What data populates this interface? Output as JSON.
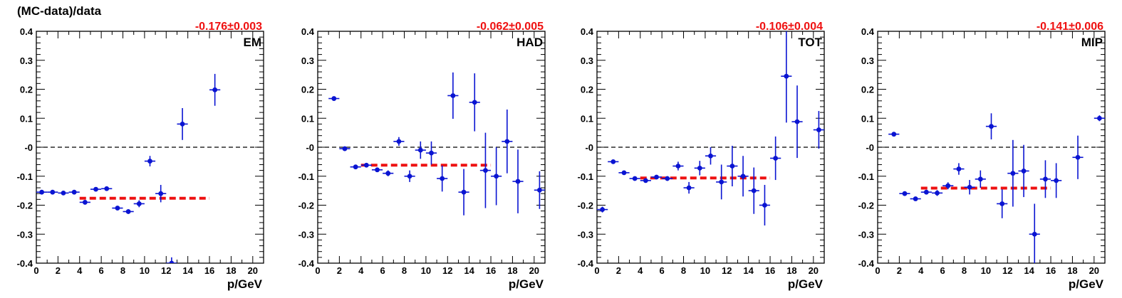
{
  "figure": {
    "ylabel": "(MC-data)/data"
  },
  "chart_data": [
    {
      "type": "scatter",
      "label": "EM",
      "fit_text": "-0.176±0.003",
      "fit_value": -0.176,
      "fit_range": [
        4,
        16
      ],
      "xlabel": "p/GeV",
      "xlim": [
        0,
        21
      ],
      "ylim": [
        -0.4,
        0.4
      ],
      "xticks": [
        "0",
        "2",
        "4",
        "6",
        "8",
        "10",
        "12",
        "14",
        "16",
        "18",
        "20"
      ],
      "yticks": [
        "-0.4",
        "-0.3",
        "-0.2",
        "-0.1",
        "-0",
        "0.1",
        "0.2",
        "0.3",
        "0.4"
      ],
      "points": [
        {
          "x": 0.5,
          "y": -0.155,
          "err": 0.004
        },
        {
          "x": 1.5,
          "y": -0.155,
          "err": 0.004
        },
        {
          "x": 2.5,
          "y": -0.158,
          "err": 0.004
        },
        {
          "x": 3.5,
          "y": -0.155,
          "err": 0.004
        },
        {
          "x": 4.5,
          "y": -0.19,
          "err": 0.006
        },
        {
          "x": 5.5,
          "y": -0.145,
          "err": 0.005
        },
        {
          "x": 6.5,
          "y": -0.143,
          "err": 0.005
        },
        {
          "x": 7.5,
          "y": -0.21,
          "err": 0.007
        },
        {
          "x": 8.5,
          "y": -0.222,
          "err": 0.008
        },
        {
          "x": 9.5,
          "y": -0.195,
          "err": 0.012
        },
        {
          "x": 10.5,
          "y": -0.048,
          "err": 0.018
        },
        {
          "x": 11.5,
          "y": -0.16,
          "err": 0.03
        },
        {
          "x": 12.5,
          "y": -0.4,
          "err": 0.02
        },
        {
          "x": 13.5,
          "y": 0.08,
          "err": 0.055
        },
        {
          "x": 16.5,
          "y": 0.198,
          "err": 0.055
        }
      ]
    },
    {
      "type": "scatter",
      "label": "HAD",
      "fit_text": "-0.062±0.005",
      "fit_value": -0.062,
      "fit_range": [
        4,
        16
      ],
      "xlabel": "p/GeV",
      "xlim": [
        0,
        21
      ],
      "ylim": [
        -0.4,
        0.4
      ],
      "xticks": [
        "0",
        "2",
        "4",
        "6",
        "8",
        "10",
        "12",
        "14",
        "16",
        "18",
        "20"
      ],
      "yticks": [
        "-0.4",
        "-0.3",
        "-0.2",
        "-0.1",
        "-0",
        "0.1",
        "0.2",
        "0.3",
        "0.4"
      ],
      "points": [
        {
          "x": 1.5,
          "y": 0.168,
          "err": 0.004
        },
        {
          "x": 2.5,
          "y": -0.005,
          "err": 0.004
        },
        {
          "x": 3.5,
          "y": -0.068,
          "err": 0.004
        },
        {
          "x": 4.5,
          "y": -0.062,
          "err": 0.006
        },
        {
          "x": 5.5,
          "y": -0.078,
          "err": 0.008
        },
        {
          "x": 6.5,
          "y": -0.09,
          "err": 0.01
        },
        {
          "x": 7.5,
          "y": 0.02,
          "err": 0.015
        },
        {
          "x": 8.5,
          "y": -0.1,
          "err": 0.02
        },
        {
          "x": 9.5,
          "y": -0.01,
          "err": 0.03
        },
        {
          "x": 10.5,
          "y": -0.02,
          "err": 0.04
        },
        {
          "x": 11.5,
          "y": -0.108,
          "err": 0.045
        },
        {
          "x": 12.5,
          "y": 0.178,
          "err": 0.08
        },
        {
          "x": 13.5,
          "y": -0.155,
          "err": 0.08
        },
        {
          "x": 14.5,
          "y": 0.155,
          "err": 0.1
        },
        {
          "x": 15.5,
          "y": -0.08,
          "err": 0.13
        },
        {
          "x": 16.5,
          "y": -0.1,
          "err": 0.1
        },
        {
          "x": 17.5,
          "y": 0.02,
          "err": 0.11
        },
        {
          "x": 18.5,
          "y": -0.118,
          "err": 0.11
        },
        {
          "x": 20.5,
          "y": -0.148,
          "err": 0.065
        }
      ]
    },
    {
      "type": "scatter",
      "label": "TOT",
      "fit_text": "-0.106±0.004",
      "fit_value": -0.106,
      "fit_range": [
        4,
        16
      ],
      "xlabel": "p/GeV",
      "xlim": [
        0,
        21
      ],
      "ylim": [
        -0.4,
        0.4
      ],
      "xticks": [
        "0",
        "2",
        "4",
        "6",
        "8",
        "10",
        "12",
        "14",
        "16",
        "18",
        "20"
      ],
      "yticks": [
        "-0.4",
        "-0.3",
        "-0.2",
        "-0.1",
        "-0",
        "0.1",
        "0.2",
        "0.3",
        "0.4"
      ],
      "points": [
        {
          "x": 0.5,
          "y": -0.215,
          "err": 0.01
        },
        {
          "x": 1.5,
          "y": -0.05,
          "err": 0.004
        },
        {
          "x": 2.5,
          "y": -0.088,
          "err": 0.004
        },
        {
          "x": 3.5,
          "y": -0.108,
          "err": 0.004
        },
        {
          "x": 4.5,
          "y": -0.115,
          "err": 0.006
        },
        {
          "x": 5.5,
          "y": -0.103,
          "err": 0.006
        },
        {
          "x": 6.5,
          "y": -0.108,
          "err": 0.008
        },
        {
          "x": 7.5,
          "y": -0.065,
          "err": 0.015
        },
        {
          "x": 8.5,
          "y": -0.14,
          "err": 0.02
        },
        {
          "x": 9.5,
          "y": -0.072,
          "err": 0.025
        },
        {
          "x": 10.5,
          "y": -0.03,
          "err": 0.03
        },
        {
          "x": 11.5,
          "y": -0.12,
          "err": 0.06
        },
        {
          "x": 12.5,
          "y": -0.065,
          "err": 0.07
        },
        {
          "x": 13.5,
          "y": -0.1,
          "err": 0.07
        },
        {
          "x": 14.5,
          "y": -0.15,
          "err": 0.08
        },
        {
          "x": 15.5,
          "y": -0.2,
          "err": 0.07
        },
        {
          "x": 16.5,
          "y": -0.038,
          "err": 0.075
        },
        {
          "x": 17.5,
          "y": 0.245,
          "err": 0.16
        },
        {
          "x": 18.5,
          "y": 0.088,
          "err": 0.125
        },
        {
          "x": 20.5,
          "y": 0.06,
          "err": 0.065
        }
      ]
    },
    {
      "type": "scatter",
      "label": "MIP",
      "fit_text": "-0.141±0.006",
      "fit_value": -0.141,
      "fit_range": [
        4,
        16
      ],
      "xlabel": "p/GeV",
      "xlim": [
        0,
        21
      ],
      "ylim": [
        -0.4,
        0.4
      ],
      "xticks": [
        "0",
        "2",
        "4",
        "6",
        "8",
        "10",
        "12",
        "14",
        "16",
        "18",
        "20"
      ],
      "yticks": [
        "-0.4",
        "-0.3",
        "-0.2",
        "-0.1",
        "-0",
        "0.1",
        "0.2",
        "0.3",
        "0.4"
      ],
      "points": [
        {
          "x": 1.5,
          "y": 0.045,
          "err": 0.004
        },
        {
          "x": 2.5,
          "y": -0.16,
          "err": 0.005
        },
        {
          "x": 3.5,
          "y": -0.178,
          "err": 0.006
        },
        {
          "x": 4.5,
          "y": -0.155,
          "err": 0.008
        },
        {
          "x": 5.5,
          "y": -0.158,
          "err": 0.01
        },
        {
          "x": 6.5,
          "y": -0.133,
          "err": 0.012
        },
        {
          "x": 7.5,
          "y": -0.075,
          "err": 0.02
        },
        {
          "x": 8.5,
          "y": -0.138,
          "err": 0.025
        },
        {
          "x": 9.5,
          "y": -0.11,
          "err": 0.03
        },
        {
          "x": 10.5,
          "y": 0.072,
          "err": 0.045
        },
        {
          "x": 11.5,
          "y": -0.195,
          "err": 0.05
        },
        {
          "x": 12.5,
          "y": -0.09,
          "err": 0.115
        },
        {
          "x": 13.5,
          "y": -0.082,
          "err": 0.09
        },
        {
          "x": 14.5,
          "y": -0.3,
          "err": 0.105
        },
        {
          "x": 15.5,
          "y": -0.11,
          "err": 0.065
        },
        {
          "x": 16.5,
          "y": -0.115,
          "err": 0.06
        },
        {
          "x": 18.5,
          "y": -0.035,
          "err": 0.075
        },
        {
          "x": 20.5,
          "y": 0.1,
          "err": 0.01
        }
      ]
    }
  ],
  "colors": {
    "marker": "#0a14d2",
    "fit": "#ee1111",
    "fit_text": "#ee1111",
    "axis": "#000000",
    "zero_line": "#000000"
  }
}
